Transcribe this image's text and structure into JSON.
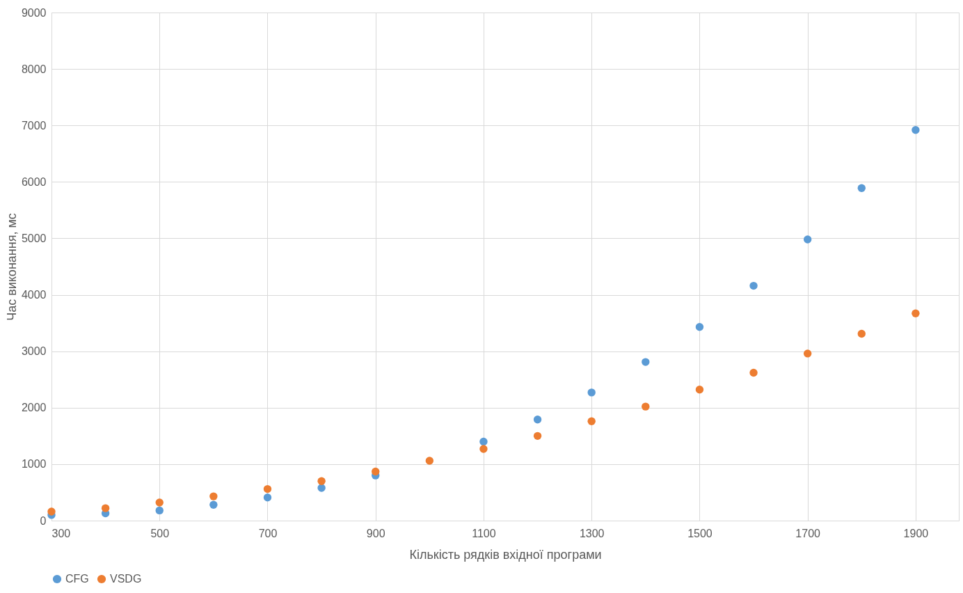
{
  "chart_data": {
    "type": "scatter",
    "xlabel": "Кількість рядків вхідної програми",
    "ylabel": "Час виконання, мс",
    "x": [
      300,
      400,
      500,
      600,
      700,
      800,
      900,
      1000,
      1100,
      1200,
      1300,
      1400,
      1500,
      1600,
      1700,
      1800,
      1900
    ],
    "series": [
      {
        "name": "CFG",
        "color": "#5b9bd5",
        "values": [
          100,
          130,
          180,
          280,
          410,
          580,
          800,
          null,
          1400,
          1790,
          2270,
          2810,
          3430,
          4160,
          4980,
          5890,
          6920
        ]
      },
      {
        "name": "VSDG",
        "color": "#ed7d31",
        "values": [
          160,
          220,
          320,
          430,
          560,
          700,
          870,
          1060,
          1270,
          1500,
          1760,
          2020,
          2320,
          2620,
          2960,
          3310,
          3670
        ]
      }
    ],
    "xlim": [
      300,
      1980
    ],
    "xticks": [
      300,
      500,
      700,
      900,
      1100,
      1300,
      1500,
      1700,
      1900
    ],
    "ylim": [
      0,
      9000
    ],
    "yticks": [
      0,
      1000,
      2000,
      3000,
      4000,
      5000,
      6000,
      7000,
      8000,
      9000
    ],
    "grid": true,
    "legend": "bottom",
    "marker": "circle"
  }
}
